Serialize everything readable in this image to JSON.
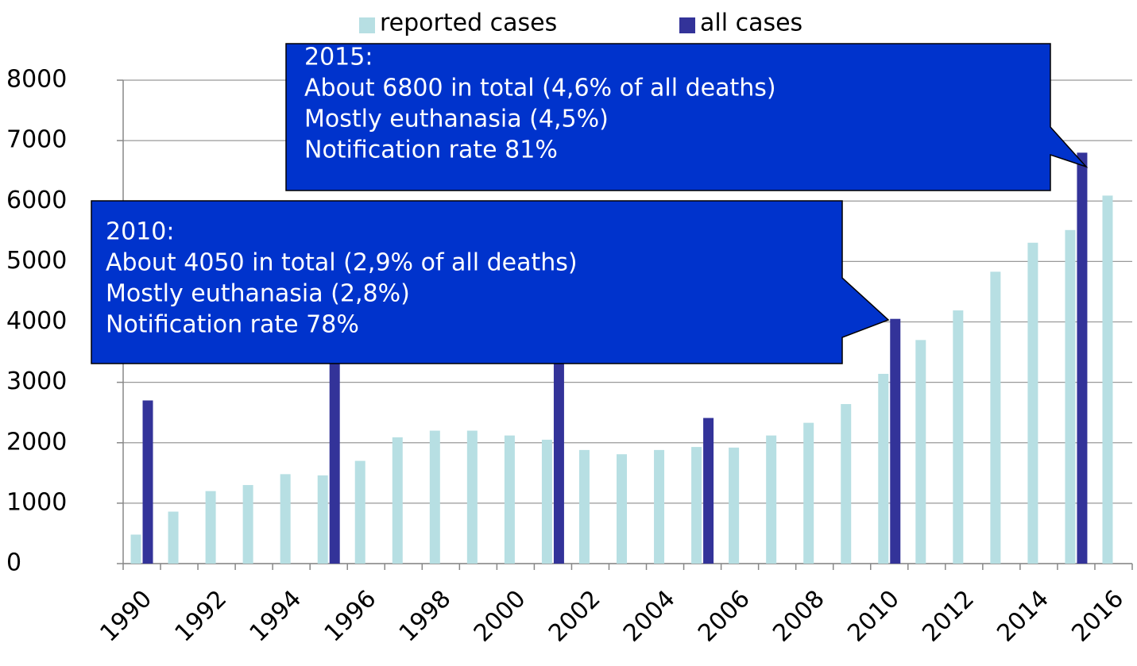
{
  "chart_data": {
    "type": "bar",
    "categories": [
      "1990",
      null,
      "1992",
      null,
      "1994",
      null,
      "1996",
      null,
      "1998",
      null,
      "2000",
      null,
      "2002",
      null,
      "2004",
      null,
      "2006",
      null,
      "2008",
      null,
      "2010",
      null,
      "2012",
      null,
      "2014",
      null,
      "2016"
    ],
    "series": [
      {
        "name": "reported cases",
        "color": "#b7dfe3",
        "values": [
          480,
          860,
          1200,
          1300,
          1480,
          1460,
          1700,
          2090,
          2200,
          2200,
          2120,
          2050,
          1880,
          1810,
          1880,
          1930,
          1920,
          2120,
          2330,
          2640,
          3140,
          3700,
          4190,
          4830,
          5310,
          5520,
          6090
        ]
      },
      {
        "name": "all cases",
        "color": "#333399",
        "values": [
          2700,
          null,
          null,
          null,
          null,
          3600,
          null,
          null,
          null,
          null,
          null,
          3800,
          null,
          null,
          null,
          2410,
          null,
          null,
          null,
          null,
          4050,
          null,
          null,
          null,
          null,
          6800,
          null
        ]
      }
    ],
    "ylim": [
      0,
      8000
    ],
    "yticks": [
      0,
      1000,
      2000,
      3000,
      4000,
      5000,
      6000,
      7000,
      8000
    ],
    "grid": true,
    "legend": "top",
    "annotations": [
      {
        "lines": [
          "2015:",
          "About 6800 in total (4,6% of all deaths)",
          "Mostly euthanasia (4,5%)",
          "Notification rate 81%"
        ]
      },
      {
        "lines": [
          "2010:",
          "About 4050 in total (2,9% of all deaths)",
          "Mostly euthanasia (2,8%)",
          "Notification rate 78%"
        ]
      }
    ]
  }
}
